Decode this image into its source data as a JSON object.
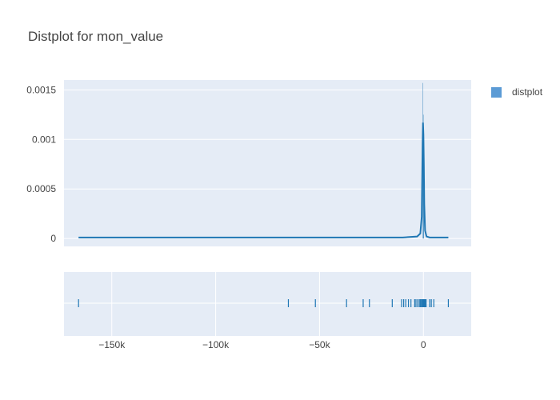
{
  "chart_data": {
    "type": "distplot",
    "title": "Distplot for mon_value",
    "legend": {
      "placement": "top-right",
      "entries": [
        "distplot"
      ]
    },
    "colors": {
      "series": "#1f77b4",
      "legend_swatch": "#5b9bd5",
      "plot_bg": "#e5ecf6",
      "grid": "#ffffff"
    },
    "x_axis": {
      "range": [
        -173000,
        23000
      ],
      "ticks": [
        -150000,
        -100000,
        -50000,
        0
      ],
      "tick_labels": [
        "−150k",
        "−100k",
        "−50k",
        "0"
      ]
    },
    "y_axis": {
      "range": [
        -8e-05,
        0.0016
      ],
      "ticks": [
        0,
        0.0005,
        0.001,
        0.0015
      ],
      "tick_labels": [
        "0",
        "0.0005",
        "0.001",
        "0.0015"
      ]
    },
    "series": [
      {
        "name": "distplot",
        "histogram": [
          {
            "x0": -350,
            "x1": -150,
            "y": 0.00157
          },
          {
            "x0": -150,
            "x1": 50,
            "y": 0.00125
          },
          {
            "x0": 50,
            "x1": 250,
            "y": 0.00045
          }
        ],
        "kde": {
          "x": [
            -166000,
            -60000,
            -10000,
            -3000,
            -1500,
            -800,
            -400,
            -200,
            0,
            200,
            400,
            800,
            1500,
            3000,
            6000,
            12000
          ],
          "y": [
            1e-05,
            1e-05,
            1e-05,
            2e-05,
            5e-05,
            0.00022,
            0.00095,
            0.00117,
            0.00105,
            0.00075,
            0.00035,
            8e-05,
            2e-05,
            1e-05,
            1e-05,
            1e-05
          ]
        },
        "rug": [
          -166000,
          -65000,
          -52000,
          -37000,
          -29000,
          -26000,
          -15000,
          -10500,
          -9500,
          -8500,
          -7200,
          -6000,
          -4200,
          -3600,
          -2800,
          -2000,
          -1500,
          -1000,
          -600,
          -300,
          -100,
          0,
          150,
          350,
          600,
          900,
          1300,
          3000,
          3800,
          5000,
          12000
        ]
      }
    ]
  }
}
